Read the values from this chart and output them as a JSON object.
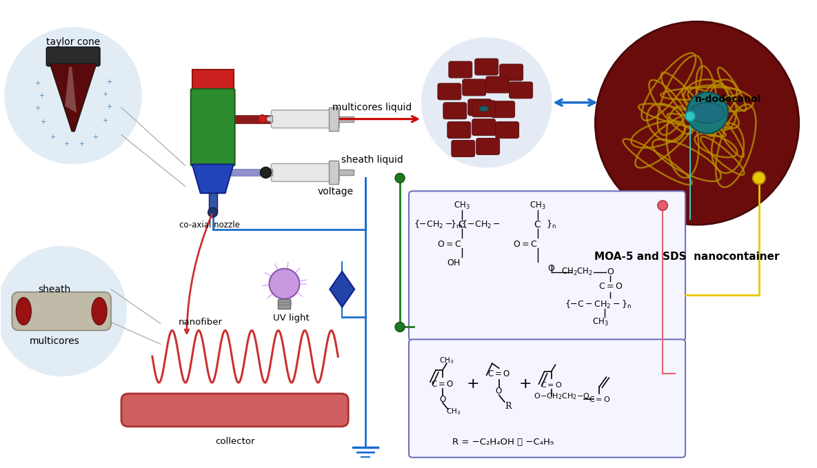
{
  "bg_color": "#ffffff",
  "fig_width": 11.85,
  "fig_height": 6.79,
  "labels": {
    "taylor_cone": "taylor cone",
    "sheath": "sheath",
    "multicores": "multicores",
    "co_axial_nozzle": "co-axial nozzle",
    "uv_light": "UV light",
    "nanofiber": "nanofiber",
    "collector": "collector",
    "voltage": "voltage",
    "multicores_liquid": "multicores liquid",
    "sheath_liquid": "sheath liquid",
    "n_dodecanol": "n-dodecanol",
    "moa_sds": "MOA-5 and SDS  nanocontainer",
    "R_label": "R = −C₂H₄OH ， −C₄H₉"
  },
  "colors": {
    "circle_bg": "#d8e4f0",
    "dark_red": "#7a1010",
    "green_body": "#3a9c3a",
    "blue_funnel": "#2244bb",
    "syringe_fill": "#e8e8e8",
    "red_arrow": "#cc0000",
    "blue_arrow": "#1a6ecc",
    "green_line": "#1f7a1f",
    "blue_line": "#1a6ecc",
    "yellow_dot": "#e8c800",
    "teal_dot": "#30c8c0",
    "pink_dot": "#e8607a",
    "box_border": "#7070bb",
    "collector_color": "#d06060",
    "nanofiber_color": "#cc3333",
    "sphere_dark": "#6a0c0c",
    "sphere_fiber": "#c8a000"
  }
}
